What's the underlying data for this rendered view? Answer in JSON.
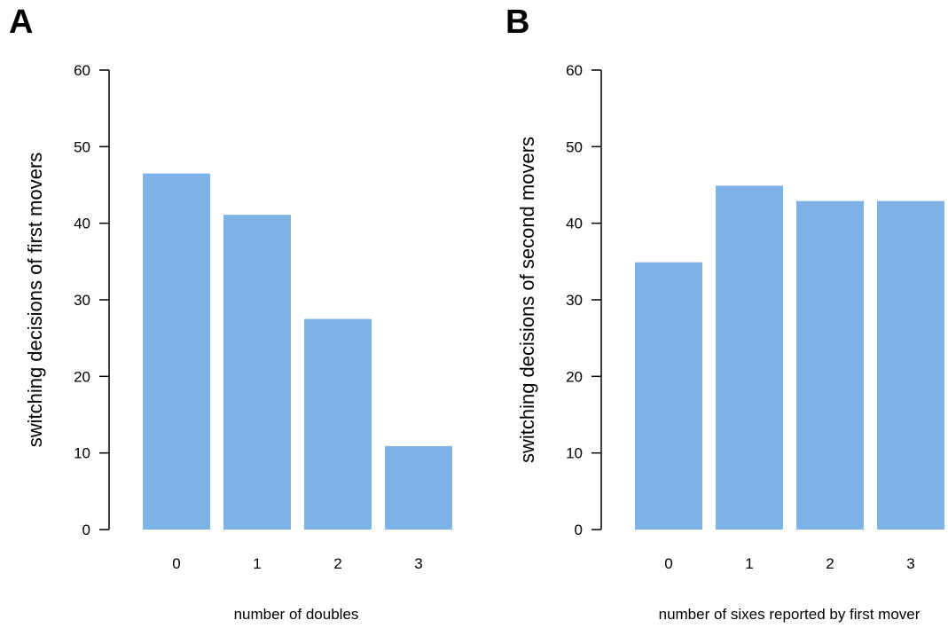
{
  "chart_data": [
    {
      "type": "bar",
      "panel_label": "A",
      "categories": [
        "0",
        "1",
        "2",
        "3"
      ],
      "values": [
        46.5,
        41.1,
        27.5,
        10.9
      ],
      "title": "",
      "xlabel": "number of doubles",
      "ylabel": "switching decisions of first movers",
      "ylim": [
        0,
        60
      ],
      "yticks": [
        0,
        10,
        20,
        30,
        40,
        50,
        60
      ],
      "grid": false,
      "bar_color": "#7fb3e8"
    },
    {
      "type": "bar",
      "panel_label": "B",
      "categories": [
        "0",
        "1",
        "2",
        "3"
      ],
      "values": [
        34.9,
        44.9,
        42.9,
        42.9
      ],
      "title": "",
      "xlabel": "number of sixes reported by first mover",
      "ylabel": "switching decisions of second movers",
      "ylim": [
        0,
        60
      ],
      "yticks": [
        0,
        10,
        20,
        30,
        40,
        50,
        60
      ],
      "grid": false,
      "bar_color": "#7fb3e8"
    }
  ]
}
